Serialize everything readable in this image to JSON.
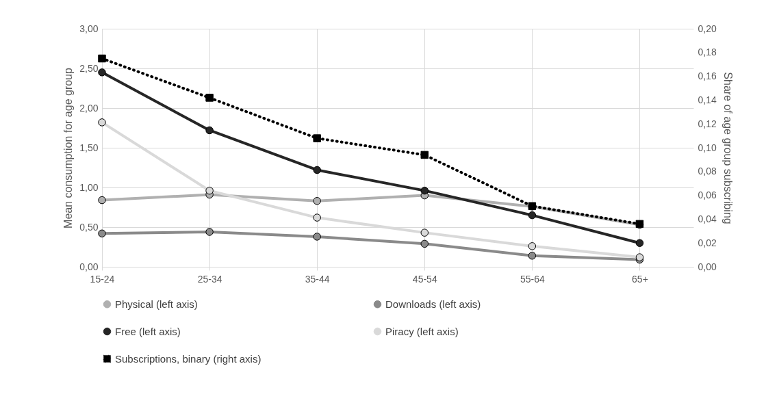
{
  "chart_data": {
    "type": "line",
    "categories": [
      "15-24",
      "25-34",
      "35-44",
      "45-54",
      "55-64",
      "65+"
    ],
    "ylabel": "Mean consumption for age group",
    "y2label": "Share of age group subscribing",
    "ylim": [
      0,
      3
    ],
    "yticks": [
      {
        "value": 0,
        "label": "0,00"
      },
      {
        "value": 0.5,
        "label": "0,50"
      },
      {
        "value": 1,
        "label": "1,00"
      },
      {
        "value": 1.5,
        "label": "1,50"
      },
      {
        "value": 2,
        "label": "2,00"
      },
      {
        "value": 2.5,
        "label": "2,50"
      },
      {
        "value": 3,
        "label": "3,00"
      }
    ],
    "y2lim": [
      0,
      0.2
    ],
    "y2ticks": [
      {
        "value": 0,
        "label": "0,00"
      },
      {
        "value": 0.02,
        "label": "0,02"
      },
      {
        "value": 0.04,
        "label": "0,04"
      },
      {
        "value": 0.06,
        "label": "0,06"
      },
      {
        "value": 0.08,
        "label": "0,08"
      },
      {
        "value": 0.1,
        "label": "0,10"
      },
      {
        "value": 0.12,
        "label": "0,12"
      },
      {
        "value": 0.14,
        "label": "0,14"
      },
      {
        "value": 0.16,
        "label": "0,16"
      },
      {
        "value": 0.18,
        "label": "0,18"
      },
      {
        "value": 0.2,
        "label": "0,20"
      }
    ],
    "grid": true,
    "legend": "bottom",
    "series": [
      {
        "name": "Physical (left axis)",
        "color": "#b0b0b0",
        "marker": "circle",
        "line_style": "solid",
        "values": [
          0.84,
          0.91,
          0.83,
          0.9,
          0.76,
          0.53
        ]
      },
      {
        "name": "Downloads (left axis)",
        "color": "#8a8a8a",
        "marker": "circle",
        "line_style": "solid",
        "values": [
          0.42,
          0.44,
          0.38,
          0.29,
          0.14,
          0.09
        ]
      },
      {
        "name": "Free (left axis)",
        "color": "#262626",
        "marker": "circle",
        "line_style": "solid",
        "values": [
          2.45,
          1.72,
          1.22,
          0.96,
          0.65,
          0.3
        ]
      },
      {
        "name": "Piracy (left axis)",
        "color": "#d9d9d9",
        "marker": "circle",
        "line_style": "solid",
        "values": [
          1.82,
          0.96,
          0.62,
          0.43,
          0.26,
          0.12
        ]
      },
      {
        "name": "Subscriptions, binary (right axis)",
        "color": "#000000",
        "axis": "y2",
        "marker": "square",
        "line_style": "dotted",
        "values": [
          0.175,
          0.142,
          0.108,
          0.094,
          0.051,
          0.036
        ]
      }
    ]
  }
}
